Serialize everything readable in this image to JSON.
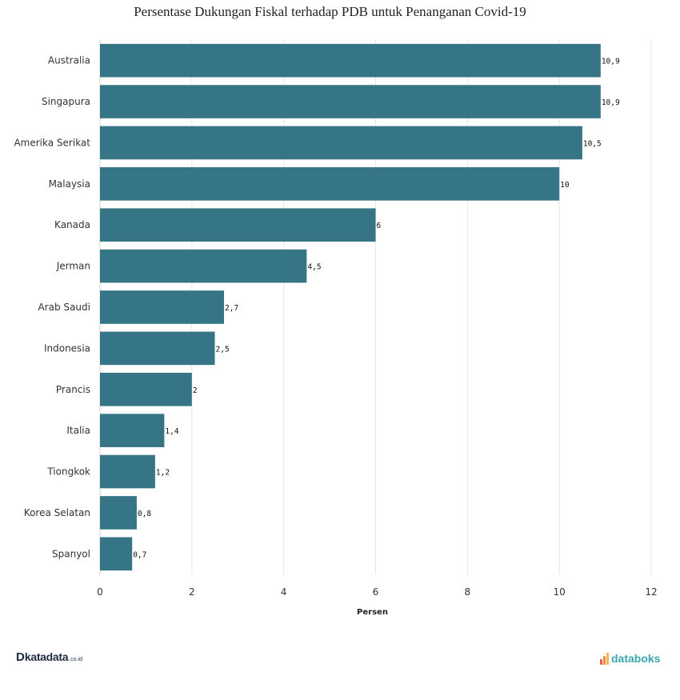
{
  "chart_data": {
    "type": "bar",
    "orientation": "horizontal",
    "title": "Persentase Dukungan Fiskal terhadap PDB untuk Penanganan Covid-19",
    "xlabel": "Persen",
    "ylabel": "",
    "xlim": [
      0,
      12
    ],
    "xticks": [
      "0",
      "2",
      "4",
      "6",
      "8",
      "10",
      "12"
    ],
    "grid": true,
    "bar_color": "#367585",
    "categories": [
      "Australia",
      "Singapura",
      "Amerika Serikat",
      "Malaysia",
      "Kanada",
      "Jerman",
      "Arab Saudi",
      "Indonesia",
      "Prancis",
      "Italia",
      "Tiongkok",
      "Korea Selatan",
      "Spanyol"
    ],
    "values": [
      10.9,
      10.9,
      10.5,
      10,
      6,
      4.5,
      2.7,
      2.5,
      2,
      1.4,
      1.2,
      0.8,
      0.7
    ],
    "data_labels": [
      "10,9",
      "10,9",
      "10,5",
      "10",
      "6",
      "4,5",
      "2,7",
      "2,5",
      "2",
      "1,4",
      "1,2",
      "0,8",
      "0,7"
    ]
  },
  "branding": {
    "left_mark": "D",
    "left_word": "katadata",
    "left_tld": ".co.id",
    "right_word": "databoks"
  },
  "colors": {
    "bar": "#367585",
    "katadata": "#1f2a44",
    "databoks": "#3aa6b0",
    "databoks_dots": [
      "#e85a4f",
      "#f08a4b",
      "#f2b84b"
    ]
  }
}
